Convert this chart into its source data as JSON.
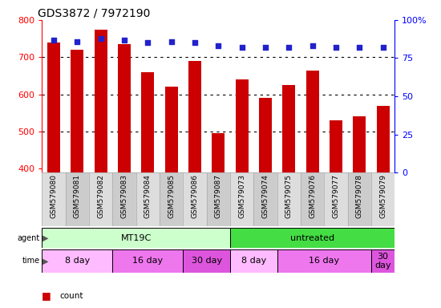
{
  "title": "GDS3872 / 7972190",
  "samples": [
    "GSM579080",
    "GSM579081",
    "GSM579082",
    "GSM579083",
    "GSM579084",
    "GSM579085",
    "GSM579086",
    "GSM579087",
    "GSM579073",
    "GSM579074",
    "GSM579075",
    "GSM579076",
    "GSM579077",
    "GSM579078",
    "GSM579079"
  ],
  "counts": [
    740,
    720,
    775,
    735,
    660,
    620,
    690,
    495,
    640,
    590,
    625,
    665,
    530,
    540,
    570
  ],
  "percentiles": [
    87,
    86,
    88,
    87,
    85,
    86,
    85,
    83,
    82,
    82,
    82,
    83,
    82,
    82,
    82
  ],
  "bar_bottom": 390,
  "ylim_left": [
    390,
    800
  ],
  "ylim_right": [
    0,
    100
  ],
  "yticks_left": [
    400,
    500,
    600,
    700,
    800
  ],
  "yticks_right": [
    0,
    25,
    50,
    75,
    100
  ],
  "bar_color": "#cc0000",
  "dot_color": "#2222cc",
  "agent_groups": [
    {
      "label": "MT19C",
      "start": 0,
      "end": 8,
      "color": "#ccffcc"
    },
    {
      "label": "untreated",
      "start": 8,
      "end": 15,
      "color": "#44dd44"
    }
  ],
  "time_groups": [
    {
      "label": "8 day",
      "start": 0,
      "end": 3,
      "color": "#ffbbff"
    },
    {
      "label": "16 day",
      "start": 3,
      "end": 6,
      "color": "#ee77ee"
    },
    {
      "label": "30 day",
      "start": 6,
      "end": 8,
      "color": "#dd55dd"
    },
    {
      "label": "8 day",
      "start": 8,
      "end": 10,
      "color": "#ffbbff"
    },
    {
      "label": "16 day",
      "start": 10,
      "end": 14,
      "color": "#ee77ee"
    },
    {
      "label": "30\nday",
      "start": 14,
      "end": 15,
      "color": "#dd55dd"
    }
  ],
  "background_color": "#ffffff"
}
